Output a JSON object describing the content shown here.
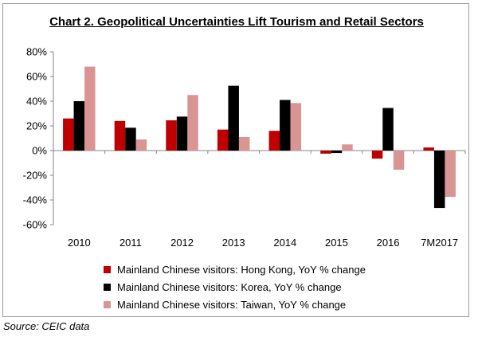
{
  "title": "Chart 2. Geopolitical Uncertainties Lift Tourism and Retail Sectors",
  "source": "Source: CEIC data",
  "colors": {
    "hong_kong": "#c00000",
    "korea": "#000000",
    "taiwan": "#d99594"
  },
  "chart_data": {
    "type": "bar",
    "title": "Chart 2. Geopolitical Uncertainties Lift Tourism and Retail Sectors",
    "xlabel": "",
    "ylabel": "",
    "categories": [
      "2010",
      "2011",
      "2012",
      "2013",
      "2014",
      "2015",
      "2016",
      "7M2017"
    ],
    "ylim": [
      -60,
      80
    ],
    "yticks": [
      "80%",
      "60%",
      "40%",
      "20%",
      "0%",
      "-20%",
      "-40%",
      "-60%"
    ],
    "grid": false,
    "legend_position": "bottom",
    "series": [
      {
        "name": "Mainland Chinese visitors: Hong Kong, YoY % change",
        "color": "#c00000",
        "values": [
          26,
          24,
          24.5,
          17,
          16,
          -2.5,
          -6.5,
          2.5
        ]
      },
      {
        "name": "Mainland Chinese visitors: Korea, YoY % change",
        "color": "#000000",
        "values": [
          40,
          18.5,
          27.5,
          52.5,
          41,
          -2,
          34.5,
          -46.5
        ]
      },
      {
        "name": "Mainland Chinese visitors: Taiwan, YoY % change",
        "color": "#d99594",
        "values": [
          68,
          9,
          45,
          11,
          38.5,
          5,
          -15.5,
          -37.5
        ]
      }
    ]
  }
}
